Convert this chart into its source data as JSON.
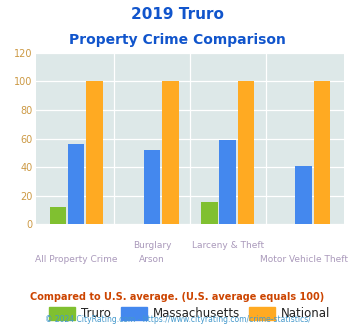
{
  "title_line1": "2019 Truro",
  "title_line2": "Property Crime Comparison",
  "groups": [
    {
      "truro": 12,
      "massachusetts": 56,
      "national": 100
    },
    {
      "truro": 0,
      "massachusetts": 52,
      "national": 100
    },
    {
      "truro": 16,
      "massachusetts": 59,
      "national": 100
    },
    {
      "truro": 0,
      "massachusetts": 41,
      "national": 100
    }
  ],
  "colors": {
    "truro": "#80c030",
    "massachusetts": "#4488ee",
    "national": "#ffaa22"
  },
  "ylim": [
    0,
    120
  ],
  "yticks": [
    0,
    20,
    40,
    60,
    80,
    100,
    120
  ],
  "legend_labels": [
    "Truro",
    "Massachusetts",
    "National"
  ],
  "footnote1": "Compared to U.S. average. (U.S. average equals 100)",
  "footnote2": "© 2024 CityRating.com - https://www.cityrating.com/crime-statistics/",
  "bg_color": "#dde8e8",
  "title_color": "#1155cc",
  "footnote1_color": "#cc4400",
  "footnote2_color": "#4499cc",
  "x_label_color": "#aa99bb",
  "ytick_color": "#cc9944"
}
